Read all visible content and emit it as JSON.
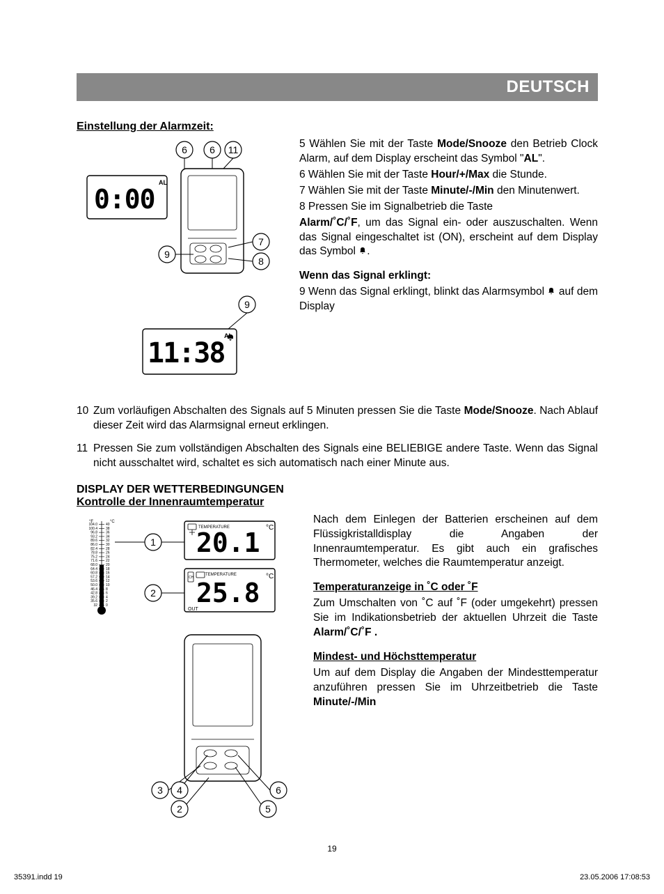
{
  "header": {
    "language": "DEUTSCH"
  },
  "alarm": {
    "heading": "Einstellung der Alarmzeit:",
    "lcd1_text": "0:00",
    "lcd1_al": "AL",
    "lcd2_text": "11:38",
    "lcd2_al": "AL",
    "callouts_top": [
      "6",
      "6",
      "11"
    ],
    "callouts_mid": [
      "9",
      "7",
      "8"
    ],
    "callout_right2": "9",
    "p5_pre": "5 Wählen Sie mit der Taste ",
    "p5_b": "Mode/Snooze",
    "p5_post": " den Betrieb Clock Alarm, auf dem Display erscheint das Symbol \"",
    "p5_b2": "AL",
    "p5_end": "\".",
    "p6_pre": "6 Wählen Sie mit der Taste ",
    "p6_b": "Hour/+/Max",
    "p6_post": " die Stunde.",
    "p7_pre": "7 Wählen Sie mit der Taste ",
    "p7_b": "Minute/-/Min",
    "p7_post": " den Minutenwert.",
    "p8_a": "8 Pressen Sie im Signalbetrieb die Taste",
    "p8_b": "Alarm/˚C/˚F",
    "p8_c": ", um das Signal ein- oder auszuschalten. Wenn das Signal eingeschaltet ist (ON), erscheint auf dem Display das Symbol ",
    "p8_d": ".",
    "sig_heading": "Wenn das Signal erklingt:",
    "p9_a": "9 Wenn das Signal erklingt, blinkt das Alarmsymbol ",
    "p9_b": " auf dem Display",
    "p10_pre": "Zum vorläufigen Abschalten des Signals auf 5 Minuten pressen Sie die Taste ",
    "p10_b": "Mode/Snooze",
    "p10_post": ". Nach Ablauf dieser Zeit wird das Alarmsignal erneut erklingen.",
    "p11": "Pressen Sie zum vollständigen Abschalten des Signals eine BELIEBIGE andere Taste. Wenn das Signal nicht ausschaltet wird, schaltet es sich automatisch nach einer Minute aus."
  },
  "weather": {
    "heading": "DISPLAY DER WETTERBEDINGUNGEN",
    "subheading": "Kontrolle der Innenraumtemperatur",
    "lcd_in_label": "TEMPERATURE",
    "lcd_in_val": "20.1",
    "lcd_out_label": "TEMPERATURE",
    "lcd_out_val": "25.8",
    "out_label": "OUT",
    "callouts": [
      "1",
      "2",
      "3",
      "4",
      "2",
      "5",
      "6"
    ],
    "scale_f": [
      "104.0",
      "100.4",
      "96.8",
      "93.2",
      "89.6",
      "86.0",
      "82.4",
      "78.8",
      "75.2",
      "71.6",
      "68.0",
      "64.4",
      "60.8",
      "57.2",
      "53.6",
      "50.0",
      "46.4",
      "42.8",
      "39.2",
      "35.6",
      "32"
    ],
    "scale_c": [
      "40",
      "38",
      "36",
      "34",
      "32",
      "30",
      "28",
      "26",
      "24",
      "22",
      "20",
      "18",
      "16",
      "14",
      "12",
      "10",
      "8",
      "6",
      "4",
      "2",
      "0"
    ],
    "intro": "Nach dem Einlegen der Batterien erscheinen auf dem Flüssigkristalldisplay die Angaben der Innenraumtemperatur. Es gibt auch ein grafisches Thermometer, welches die Raumtemperatur anzeigt.",
    "cf_head": "Temperaturanzeige in ˚C oder ˚F",
    "cf_a": "Zum Umschalten von ˚C auf ˚F (oder umgekehrt) pressen Sie im Indikationsbetrieb der aktuellen Uhrzeit die Taste ",
    "cf_b": "Alarm/˚C/˚F .",
    "minmax_head": "Mindest- und Höchsttemperatur",
    "minmax_a": "Um auf dem Display die Angaben der Mindesttemperatur anzuführen pressen Sie im Uhrzeitbetrieb die Taste ",
    "minmax_b": "Minute/-/Min"
  },
  "footer": {
    "page": "19",
    "left": "35391.indd   19",
    "right": "23.05.2006   17:08:53"
  }
}
